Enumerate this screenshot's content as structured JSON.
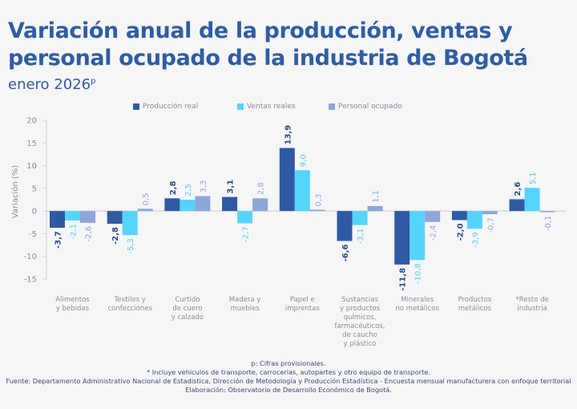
{
  "header": {
    "title": "Variación anual de la producción, ventas y personal ocupado de la industria de Bogotá",
    "subtitle": "enero 2026",
    "subtitle_sup": "p"
  },
  "colors": {
    "produccion": "#2f5aa3",
    "ventas": "#55d4fb",
    "personal": "#8ea6d8",
    "axis_text": "#8a8d96",
    "title": "#2f5da4"
  },
  "chart_data": {
    "type": "bar",
    "title": "Variación anual de la producción, ventas y personal ocupado de la industria de Bogotá",
    "subtitle": "enero 2026p",
    "xlabel": "",
    "ylabel": "Variación (%)",
    "ylim": [
      -15,
      20
    ],
    "yticks": [
      20,
      15,
      10,
      5,
      0,
      -5,
      -10,
      -15
    ],
    "grid": false,
    "legend_position": "top-center",
    "categories": [
      "Alimentos y bebidas",
      "Textiles y confecciones",
      "Curtido de cuero y calzado",
      "Madera y muebles",
      "Papel e imprentas",
      "Sustancias y productos químicos, farmacéuticos, de caucho y plástico",
      "Minerales no metálicos",
      "Productos metálicos",
      "*Resto de industria"
    ],
    "category_lines": [
      [
        "Alimentos",
        "y bebidas"
      ],
      [
        "Textiles y",
        "confecciones"
      ],
      [
        "Curtido",
        "de cuero",
        "y calzado"
      ],
      [
        "Madera y",
        "muebles"
      ],
      [
        "Papel e",
        "imprentas"
      ],
      [
        "Sustancias",
        "y productos",
        "químicos,",
        "farmacéuticos,",
        "de caucho",
        "y plástico"
      ],
      [
        "Minerales",
        "no metálicos"
      ],
      [
        "Productos",
        "metálicos"
      ],
      [
        "*Resto de",
        "industria"
      ]
    ],
    "series": [
      {
        "name": "Producción real",
        "key": "produccion",
        "values": [
          -3.7,
          -2.8,
          2.8,
          3.1,
          13.9,
          -6.6,
          -11.8,
          -2.0,
          2.6
        ],
        "labels": [
          "-3,7",
          "-2,8",
          "2,8",
          "3,1",
          "13,9",
          "-6,6",
          "-11,8",
          "-2,0",
          "2,6"
        ]
      },
      {
        "name": "Ventas reales",
        "key": "ventas",
        "values": [
          -2.1,
          -5.3,
          2.5,
          -2.7,
          9.0,
          -3.1,
          -10.8,
          -3.9,
          5.1
        ],
        "labels": [
          "-2,1",
          "-5,3",
          "2,5",
          "-2,7",
          "9,0",
          "-3,1",
          "-10,8",
          "-3,9",
          "5,1"
        ]
      },
      {
        "name": "Personal ocupado",
        "key": "personal",
        "values": [
          -2.6,
          0.5,
          3.3,
          2.8,
          0.3,
          1.1,
          -2.4,
          -0.7,
          -0.1
        ],
        "labels": [
          "-2,6",
          "0,5",
          "3,3",
          "2,8",
          "0,3",
          "1,1",
          "-2,4",
          "-0,7",
          "-0,1"
        ]
      }
    ]
  },
  "footer": {
    "note_p": "p: Cifras provisionales.",
    "note_star": "*  Incluye vehiculos de transporte, carrocerias, autopartes y otro equipo de transporte.",
    "source": "Fuente: Departamento Administrativo Nacional de Estadistica, Dirección de Metodología y Producción Estadística - Encuesta mensual manufacturera con enfoque territorial",
    "elaboration": "Elaboración: Observatorio de Desarrollo Económico de Bogotá."
  }
}
